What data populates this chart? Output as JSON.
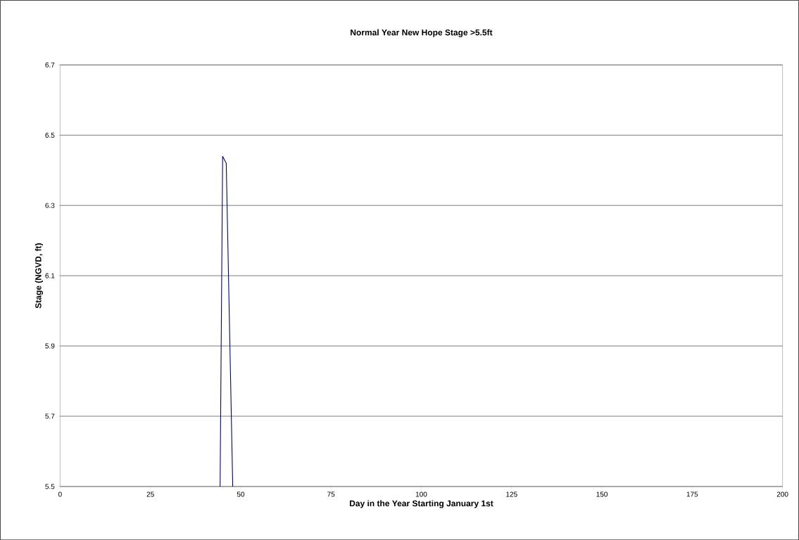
{
  "chart_data": {
    "type": "line",
    "title": "Normal Year New Hope Stage >5.5ft",
    "xlabel": "Day in the Year Starting January 1st",
    "ylabel": "Stage (NGVD, ft)",
    "series": [
      {
        "color": "#000080",
        "x": [
          44.3,
          45,
          46,
          47.8
        ],
        "values": [
          5.5,
          6.44,
          6.42,
          5.5
        ]
      }
    ],
    "xlim": [
      0,
      200
    ],
    "xticks": [
      0,
      25,
      50,
      75,
      100,
      125,
      150,
      175,
      200
    ],
    "ylim": [
      5.5,
      6.7
    ],
    "yticks": [
      5.5,
      5.7,
      5.9,
      6.1,
      6.3,
      6.5,
      6.7
    ],
    "grid": "y",
    "marker": "none",
    "line_style": "solid"
  }
}
